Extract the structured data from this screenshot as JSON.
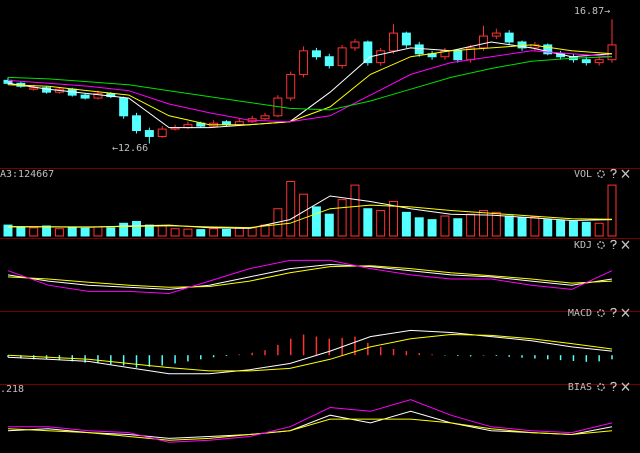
{
  "chart_data": [
    {
      "type": "candlestick",
      "up_color": "#ff3232",
      "down_color": "#54ffff",
      "ylim": [
        11.9,
        17.25
      ],
      "open": [
        14.8,
        14.7,
        14.5,
        14.55,
        14.4,
        14.5,
        14.3,
        14.2,
        14.35,
        14.2,
        13.6,
        13.1,
        12.9,
        13.15,
        13.2,
        13.35,
        13.25,
        13.4,
        13.3,
        13.4,
        13.5,
        13.6,
        14.2,
        15.0,
        15.8,
        15.6,
        15.3,
        15.9,
        16.1,
        15.4,
        15.8,
        16.4,
        16.0,
        15.7,
        15.6,
        15.8,
        15.5,
        15.9,
        16.3,
        16.4,
        16.1,
        15.9,
        16.0,
        15.7,
        15.6,
        15.5,
        15.4,
        15.5
      ],
      "high": [
        14.9,
        14.75,
        14.65,
        14.6,
        14.55,
        14.55,
        14.35,
        14.45,
        14.4,
        14.25,
        13.7,
        13.2,
        13.25,
        13.3,
        13.4,
        13.4,
        13.45,
        13.45,
        13.5,
        13.6,
        13.7,
        14.3,
        15.1,
        15.95,
        15.9,
        15.7,
        16.0,
        16.2,
        16.15,
        15.9,
        16.7,
        16.45,
        16.1,
        15.8,
        15.9,
        15.85,
        16.0,
        16.65,
        16.55,
        16.5,
        16.15,
        16.1,
        16.05,
        15.8,
        15.7,
        15.6,
        15.6,
        16.87
      ],
      "low": [
        14.65,
        14.55,
        14.45,
        14.35,
        14.35,
        14.25,
        14.15,
        14.15,
        14.2,
        13.5,
        13.0,
        12.66,
        12.85,
        13.1,
        13.15,
        13.2,
        13.2,
        13.25,
        13.25,
        13.35,
        13.45,
        13.55,
        14.1,
        14.9,
        15.5,
        15.2,
        15.2,
        15.8,
        15.3,
        15.3,
        15.7,
        15.9,
        15.6,
        15.5,
        15.5,
        15.4,
        15.4,
        15.8,
        16.2,
        16.0,
        15.8,
        15.8,
        15.65,
        15.5,
        15.4,
        15.3,
        15.3,
        15.4
      ],
      "close": [
        14.7,
        14.6,
        14.55,
        14.4,
        14.5,
        14.3,
        14.2,
        14.35,
        14.25,
        13.6,
        13.1,
        12.9,
        13.15,
        13.2,
        13.3,
        13.25,
        13.35,
        13.3,
        13.4,
        13.5,
        13.6,
        14.2,
        15.0,
        15.8,
        15.6,
        15.3,
        15.9,
        16.1,
        15.4,
        15.8,
        16.4,
        16.0,
        15.7,
        15.6,
        15.8,
        15.5,
        15.9,
        16.3,
        16.4,
        16.1,
        15.9,
        16.0,
        15.7,
        15.6,
        15.5,
        15.4,
        15.5,
        16.0
      ],
      "series": [
        {
          "color": "#ffffff",
          "values": [
            14.7,
            14.5,
            14.35,
            14.2,
            13.2,
            13.2,
            13.3,
            13.4,
            14.4,
            15.6,
            15.9,
            15.8,
            16.1,
            15.9,
            15.6,
            15.7
          ]
        },
        {
          "color": "#ffff00",
          "values": [
            14.65,
            14.6,
            14.45,
            14.3,
            13.6,
            13.3,
            13.3,
            13.4,
            13.9,
            15.0,
            15.6,
            15.8,
            15.9,
            16.0,
            15.8,
            15.7
          ]
        },
        {
          "color": "#ff00ff",
          "values": [
            14.8,
            14.7,
            14.6,
            14.45,
            14.0,
            13.7,
            13.45,
            13.4,
            13.6,
            14.3,
            15.0,
            15.4,
            15.6,
            15.8,
            15.7,
            15.6
          ]
        },
        {
          "color": "#00e000",
          "values": [
            14.9,
            14.85,
            14.75,
            14.65,
            14.45,
            14.25,
            14.05,
            13.85,
            13.8,
            14.1,
            14.5,
            14.9,
            15.2,
            15.45,
            15.55,
            15.6
          ]
        }
      ],
      "annotations": [
        "16.87→",
        "←12.66"
      ]
    },
    {
      "type": "bar",
      "title": "VOL",
      "label": "A3:124667",
      "label_color": "#00ff00",
      "ylim": [
        0,
        330000
      ],
      "values": [
        60000,
        50000,
        45000,
        55000,
        40000,
        48000,
        42000,
        50000,
        45000,
        70000,
        80000,
        60000,
        55000,
        40000,
        38000,
        35000,
        40000,
        36000,
        42000,
        45000,
        60000,
        150000,
        300000,
        230000,
        160000,
        120000,
        200000,
        280000,
        150000,
        140000,
        190000,
        130000,
        100000,
        90000,
        110000,
        95000,
        120000,
        140000,
        130000,
        110000,
        100000,
        105000,
        90000,
        85000,
        80000,
        75000,
        70000,
        280000
      ],
      "series": [
        {
          "color": "#ffffff",
          "values": [
            50000,
            50000,
            48000,
            55000,
            60000,
            45000,
            42000,
            90000,
            220000,
            190000,
            150000,
            120000,
            115000,
            100000,
            85000,
            90000
          ]
        },
        {
          "color": "#ffff00",
          "values": [
            52000,
            51000,
            50000,
            52000,
            56000,
            50000,
            46000,
            70000,
            150000,
            170000,
            160000,
            140000,
            125000,
            110000,
            95000,
            92000
          ]
        }
      ]
    },
    {
      "type": "line",
      "title": "KDJ",
      "ylim": [
        -20,
        120
      ],
      "series": [
        {
          "color": "#ffffff",
          "values": [
            60,
            45,
            35,
            30,
            25,
            35,
            55,
            75,
            85,
            80,
            70,
            60,
            55,
            45,
            35,
            50
          ]
        },
        {
          "color": "#ffff00",
          "values": [
            55,
            50,
            42,
            35,
            30,
            32,
            45,
            65,
            80,
            82,
            75,
            65,
            58,
            50,
            40,
            45
          ]
        },
        {
          "color": "#ff00ff",
          "values": [
            70,
            35,
            20,
            20,
            15,
            45,
            75,
            95,
            95,
            75,
            60,
            50,
            50,
            35,
            25,
            70
          ]
        }
      ]
    },
    {
      "type": "bar",
      "title": "MACD",
      "ylim": [
        -0.6,
        0.9
      ],
      "signed": true,
      "values": [
        -0.05,
        -0.08,
        -0.1,
        -0.1,
        -0.12,
        -0.15,
        -0.18,
        -0.2,
        -0.22,
        -0.25,
        -0.3,
        -0.28,
        -0.25,
        -0.2,
        -0.15,
        -0.1,
        -0.05,
        -0.02,
        0.02,
        0.06,
        0.12,
        0.25,
        0.4,
        0.5,
        0.45,
        0.4,
        0.42,
        0.45,
        0.3,
        0.2,
        0.15,
        0.1,
        0.05,
        0.02,
        -0.01,
        -0.02,
        -0.03,
        -0.01,
        -0.02,
        -0.04,
        -0.06,
        -0.08,
        -0.1,
        -0.12,
        -0.14,
        -0.16,
        -0.15,
        -0.1
      ],
      "series": [
        {
          "color": "#ffffff",
          "values": [
            -0.05,
            -0.1,
            -0.15,
            -0.3,
            -0.45,
            -0.45,
            -0.35,
            -0.2,
            0.1,
            0.45,
            0.6,
            0.55,
            0.45,
            0.35,
            0.2,
            0.1
          ]
        },
        {
          "color": "#ffff00",
          "values": [
            0,
            -0.05,
            -0.1,
            -0.2,
            -0.3,
            -0.38,
            -0.38,
            -0.32,
            -0.1,
            0.2,
            0.4,
            0.5,
            0.48,
            0.4,
            0.28,
            0.15
          ]
        }
      ]
    },
    {
      "type": "line",
      "title": "BIAS",
      "label": ".218",
      "label_color": "#ff00ff",
      "ylim": [
        -5,
        10
      ],
      "series": [
        {
          "color": "#ffffff",
          "values": [
            0,
            0.5,
            -0.5,
            -1,
            -2,
            -1.5,
            -1,
            0,
            4,
            2,
            5,
            2,
            0,
            -0.5,
            -1,
            1
          ]
        },
        {
          "color": "#ffff00",
          "values": [
            0.5,
            0,
            -0.5,
            -1.5,
            -2.5,
            -2,
            -1,
            0,
            3,
            3,
            3,
            2,
            0.5,
            -0.5,
            -1,
            0
          ]
        },
        {
          "color": "#ff00ff",
          "values": [
            1,
            1,
            0,
            -0.5,
            -3,
            -2.5,
            -1.5,
            1,
            6,
            5,
            8,
            4,
            1,
            0,
            -0.5,
            2
          ]
        }
      ]
    }
  ]
}
